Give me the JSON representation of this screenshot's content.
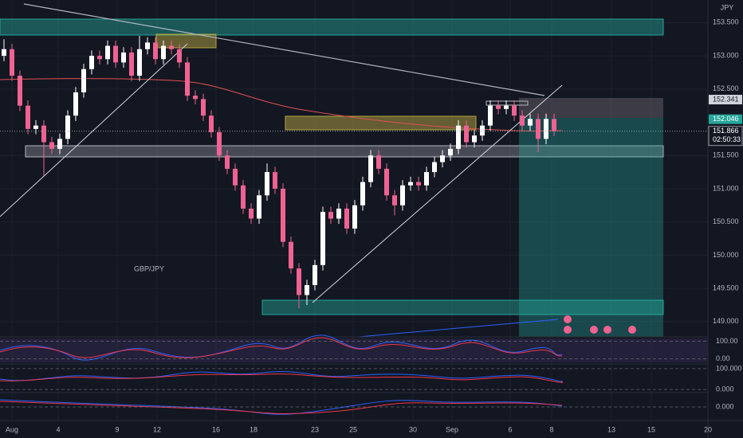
{
  "chart_data": {
    "type": "candlestick",
    "title": "GBP/JPY",
    "currency": "JPY",
    "up_color": "#ffffff",
    "down_color": "#f06292",
    "grid": true,
    "open": [
      153.0,
      153.1,
      152.7,
      152.25,
      151.9,
      151.95,
      151.7,
      151.6,
      151.75,
      152.1,
      152.45,
      152.8,
      153.0,
      152.95,
      153.15,
      152.9,
      153.05,
      152.7,
      153.1,
      153.2,
      152.95,
      153.15,
      153.1,
      152.9,
      152.4,
      152.35,
      152.1,
      151.85,
      151.5,
      151.3,
      151.05,
      150.7,
      150.55,
      150.9,
      151.25,
      151.0,
      150.2,
      149.8,
      149.4,
      149.55,
      149.85,
      150.65,
      150.55,
      150.7,
      150.4,
      150.75,
      151.1,
      151.5,
      151.3,
      150.9,
      150.75,
      151.05,
      151.1,
      151.05,
      151.25,
      151.4,
      151.5,
      151.6,
      151.95,
      151.7,
      151.8,
      151.95,
      152.25,
      152.2,
      152.25,
      152.1,
      151.95,
      152.05,
      151.75,
      152.05
    ],
    "high": [
      153.25,
      153.18,
      152.78,
      152.33,
      152.03,
      152.03,
      151.78,
      151.83,
      152.18,
      152.53,
      152.88,
      153.08,
      153.08,
      153.23,
      153.23,
      153.13,
      153.13,
      153.3,
      153.28,
      153.28,
      153.23,
      153.23,
      153.18,
      152.98,
      152.48,
      152.43,
      152.18,
      151.93,
      151.58,
      151.38,
      151.13,
      150.78,
      150.98,
      151.38,
      151.33,
      151.08,
      150.28,
      149.88,
      149.63,
      149.93,
      150.73,
      150.73,
      150.78,
      150.78,
      150.83,
      151.18,
      151.58,
      151.58,
      151.38,
      150.98,
      151.13,
      151.18,
      151.18,
      151.33,
      151.48,
      151.58,
      151.68,
      152.03,
      152.03,
      151.88,
      152.03,
      152.33,
      152.33,
      152.33,
      152.33,
      152.18,
      152.13,
      152.13,
      152.13,
      152.13
    ],
    "low": [
      152.92,
      152.62,
      152.17,
      151.82,
      151.82,
      151.2,
      151.52,
      151.52,
      151.67,
      152.02,
      152.37,
      152.72,
      152.87,
      152.87,
      152.82,
      152.82,
      152.62,
      152.62,
      153.02,
      152.87,
      152.87,
      153.02,
      152.82,
      152.32,
      152.27,
      152.02,
      151.77,
      151.42,
      151.22,
      150.97,
      150.62,
      150.47,
      150.47,
      150.82,
      150.92,
      150.12,
      149.72,
      149.2,
      149.25,
      149.47,
      149.77,
      150.47,
      150.47,
      150.32,
      150.32,
      150.67,
      151.02,
      151.22,
      150.82,
      150.6,
      150.67,
      150.97,
      150.97,
      150.97,
      151.17,
      151.32,
      151.42,
      151.52,
      151.62,
      151.62,
      151.72,
      151.87,
      152.12,
      152.12,
      152.02,
      151.87,
      151.87,
      151.55,
      151.67,
      151.79
    ],
    "close": [
      153.1,
      152.7,
      152.25,
      151.9,
      151.95,
      151.7,
      151.6,
      151.75,
      152.1,
      152.45,
      152.8,
      153.0,
      152.95,
      153.15,
      152.9,
      153.05,
      152.7,
      153.1,
      153.2,
      152.95,
      153.15,
      153.1,
      152.9,
      152.4,
      152.35,
      152.1,
      151.85,
      151.5,
      151.3,
      151.05,
      150.7,
      150.55,
      150.9,
      151.25,
      151.0,
      150.2,
      149.8,
      149.4,
      149.55,
      149.85,
      150.65,
      150.55,
      150.7,
      150.4,
      150.75,
      151.1,
      151.5,
      151.3,
      150.9,
      150.75,
      151.05,
      151.1,
      151.05,
      151.25,
      151.4,
      151.5,
      151.6,
      151.95,
      151.7,
      151.8,
      151.95,
      152.25,
      152.2,
      152.25,
      152.1,
      151.95,
      152.05,
      151.75,
      152.05,
      151.87
    ],
    "xlim": [
      -0.5,
      88.3
    ],
    "xticks": [
      {
        "value": 1,
        "label": "Aug"
      },
      {
        "value": 6.8,
        "label": "4"
      },
      {
        "value": 14.2,
        "label": "9"
      },
      {
        "value": 19.2,
        "label": "12"
      },
      {
        "value": 26.6,
        "label": "16"
      },
      {
        "value": 31.3,
        "label": "18"
      },
      {
        "value": 39,
        "label": "23"
      },
      {
        "value": 43.8,
        "label": "25"
      },
      {
        "value": 51.3,
        "label": "30"
      },
      {
        "value": 56.2,
        "label": "Sep"
      },
      {
        "value": 63.5,
        "label": "6"
      },
      {
        "value": 68.7,
        "label": "8"
      },
      {
        "value": 76.2,
        "label": "13"
      },
      {
        "value": 81.2,
        "label": "15"
      },
      {
        "value": 88.3,
        "label": "20"
      }
    ],
    "ylim": [
      148.77,
      153.84
    ],
    "yticks": [
      {
        "value": 153.5,
        "label": "153.500"
      },
      {
        "value": 153,
        "label": "153.000"
      },
      {
        "value": 152.5,
        "label": "152.500"
      },
      {
        "value": 151.5,
        "label": "151.500"
      },
      {
        "value": 151,
        "label": "151.000"
      },
      {
        "value": 150.5,
        "label": "150.500"
      },
      {
        "value": 150,
        "label": "150.000"
      },
      {
        "value": 149.5,
        "label": "149.500"
      },
      {
        "value": 149,
        "label": "149.000"
      }
    ],
    "last_price": 151.866,
    "countdown": "02:50:33",
    "price_labels": [
      152.341,
      152.046
    ],
    "indicator_panels": [
      {
        "ylim": [
          -20,
          116
        ],
        "ticks": [
          {
            "value": 100,
            "label": "100.00"
          },
          {
            "value": 0,
            "label": "0.00"
          }
        ]
      },
      {
        "ylim": [
          -15,
          115
        ],
        "ticks": [
          {
            "value": 100,
            "label": "100.000"
          },
          {
            "value": 0,
            "label": "0.000"
          }
        ]
      },
      {
        "ylim": [
          -0.3,
          0.3
        ],
        "ticks": [
          {
            "value": 0,
            "label": "0.000"
          }
        ]
      }
    ]
  }
}
